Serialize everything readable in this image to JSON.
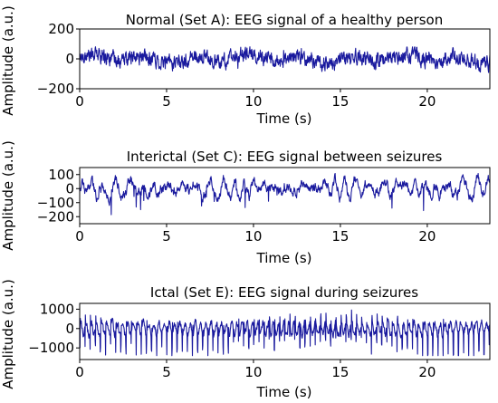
{
  "colors": {
    "signal": "#1a1a9e",
    "background": "#ffffff",
    "axes": "#000000"
  },
  "chart_data": [
    {
      "type": "line",
      "title": "Normal (Set A): EEG signal of a healthy person",
      "xlabel": "Time (s)",
      "ylabel": "Amplitude (a.u.)",
      "xlim": [
        0,
        23.6
      ],
      "ylim": [
        -200,
        200
      ],
      "xticks": [
        0,
        5,
        10,
        15,
        20
      ],
      "yticks": [
        -200,
        0,
        200
      ],
      "series": [
        {
          "style": "noisy-eeg",
          "amplitude": 50,
          "envelope": [
            -180,
            180
          ]
        }
      ]
    },
    {
      "type": "line",
      "title": "Interictal (Set C): EEG signal between seizures",
      "xlabel": "Time (s)",
      "ylabel": "Amplitude (a.u.)",
      "xlim": [
        0,
        23.6
      ],
      "ylim": [
        -250,
        150
      ],
      "xticks": [
        0,
        5,
        10,
        15,
        20
      ],
      "yticks": [
        -200,
        -100,
        0,
        100
      ],
      "series": [
        {
          "style": "rhythmic-eeg",
          "amplitude": 60,
          "envelope": [
            -220,
            130
          ]
        }
      ]
    },
    {
      "type": "line",
      "title": "Ictal (Set E): EEG signal during seizures",
      "xlabel": "Time (s)",
      "ylabel": "Amplitude (a.u.)",
      "xlim": [
        0,
        23.6
      ],
      "ylim": [
        -1600,
        1300
      ],
      "xticks": [
        0,
        5,
        10,
        15,
        20
      ],
      "yticks": [
        -1000,
        0,
        1000
      ],
      "series": [
        {
          "style": "spike-eeg",
          "amplitude": 600,
          "envelope": [
            -1400,
            1100
          ]
        }
      ]
    }
  ]
}
